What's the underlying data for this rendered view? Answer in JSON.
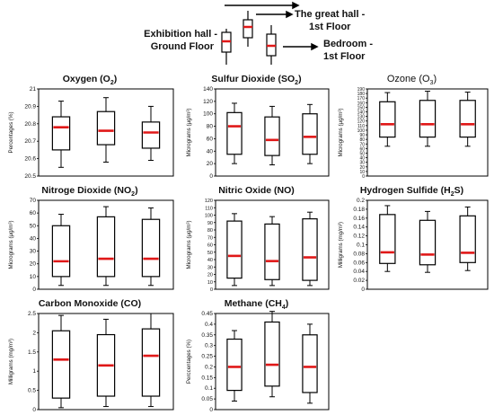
{
  "legend": {
    "labels": {
      "great_hall": "The great hall -\n1st Floor",
      "exhibition": "Exhibition hall -\nGround Floor",
      "bedroom": "Bedroom -\n1st Floor"
    }
  },
  "chart_data": [
    {
      "type": "box",
      "title": "Oxygen (O",
      "title_sub": "2",
      "title_end": ")",
      "ylabel": "Percentages (%)",
      "ylim": [
        20.5,
        21
      ],
      "yticks": [
        20.5,
        20.6,
        20.7,
        20.8,
        20.9,
        21
      ],
      "ytick_labels": [
        "20.5",
        "20.6",
        "20.7",
        "20.8",
        "20.9",
        "21"
      ],
      "boxes": [
        {
          "min": 20.55,
          "q1": 20.65,
          "median": 20.78,
          "q3": 20.84,
          "max": 20.93
        },
        {
          "min": 20.58,
          "q1": 20.68,
          "median": 20.76,
          "q3": 20.87,
          "max": 20.95
        },
        {
          "min": 20.59,
          "q1": 20.66,
          "median": 20.75,
          "q3": 20.81,
          "max": 20.9
        }
      ]
    },
    {
      "type": "box",
      "title": "Sulfur Dioxide (SO",
      "title_sub": "2",
      "title_end": ")",
      "ylabel": "Micrograms (µg/m³)",
      "ylim": [
        0,
        140
      ],
      "yticks": [
        0,
        20,
        40,
        60,
        80,
        100,
        120,
        140
      ],
      "ytick_labels": [
        "0",
        "20",
        "40",
        "60",
        "80",
        "100",
        "120",
        "140"
      ],
      "boxes": [
        {
          "min": 20,
          "q1": 35,
          "median": 80,
          "q3": 102,
          "max": 117
        },
        {
          "min": 18,
          "q1": 33,
          "median": 58,
          "q3": 95,
          "max": 112
        },
        {
          "min": 20,
          "q1": 35,
          "median": 63,
          "q3": 100,
          "max": 115
        }
      ]
    },
    {
      "type": "box",
      "title": "Ozone (O",
      "title_sub": "3",
      "title_end": ")",
      "title_style": "normal",
      "ylabel": "Micrograms (µg/m³)",
      "ylim": [
        0,
        190
      ],
      "yticks": [
        0,
        10,
        20,
        30,
        40,
        50,
        60,
        70,
        80,
        90,
        100,
        110,
        120,
        130,
        140,
        150,
        160,
        170,
        180,
        190
      ],
      "ytick_labels": [
        "0",
        "10",
        "20",
        "30",
        "40",
        "50",
        "60",
        "70",
        "80",
        "90",
        "100",
        "110",
        "120",
        "130",
        "140",
        "150",
        "160",
        "170",
        "180",
        "190"
      ],
      "boxes": [
        {
          "min": 65,
          "q1": 85,
          "median": 113,
          "q3": 162,
          "max": 182
        },
        {
          "min": 65,
          "q1": 85,
          "median": 113,
          "q3": 165,
          "max": 185
        },
        {
          "min": 65,
          "q1": 85,
          "median": 113,
          "q3": 165,
          "max": 183
        }
      ]
    },
    {
      "type": "box",
      "title": "Nitroge Dioxide (NO",
      "title_sub": "2",
      "title_end": ")",
      "ylabel": "Micrograms (µg/m³)",
      "ylim": [
        0,
        70
      ],
      "yticks": [
        0,
        10,
        20,
        30,
        40,
        50,
        60,
        70
      ],
      "ytick_labels": [
        "0",
        "10",
        "20",
        "30",
        "40",
        "50",
        "60",
        "70"
      ],
      "boxes": [
        {
          "min": 3,
          "q1": 10,
          "median": 22,
          "q3": 50,
          "max": 59
        },
        {
          "min": 3,
          "q1": 10,
          "median": 24,
          "q3": 57,
          "max": 65
        },
        {
          "min": 3,
          "q1": 10,
          "median": 24,
          "q3": 55,
          "max": 64
        }
      ]
    },
    {
      "type": "box",
      "title": "Nitric Oxide (NO)",
      "title_sub": "",
      "title_end": "",
      "ylabel": "Micrograms (µg/m³)",
      "ylim": [
        0,
        120
      ],
      "yticks": [
        0,
        10,
        20,
        30,
        40,
        50,
        60,
        70,
        80,
        90,
        100,
        110,
        120
      ],
      "ytick_labels": [
        "0",
        "10",
        "20",
        "30",
        "40",
        "50",
        "60",
        "70",
        "80",
        "90",
        "100",
        "110",
        "120"
      ],
      "boxes": [
        {
          "min": 5,
          "q1": 15,
          "median": 45,
          "q3": 92,
          "max": 102
        },
        {
          "min": 5,
          "q1": 13,
          "median": 38,
          "q3": 88,
          "max": 98
        },
        {
          "min": 5,
          "q1": 12,
          "median": 43,
          "q3": 95,
          "max": 104
        }
      ]
    },
    {
      "type": "box",
      "title": "Hydrogen Sulfide (H",
      "title_sub": "2",
      "title_end": "S)",
      "ylabel": "Milligrams (mg/m³)",
      "ylim": [
        0,
        0.2
      ],
      "yticks": [
        0,
        0.02,
        0.04,
        0.06,
        0.08,
        0.1,
        0.12,
        0.14,
        0.16,
        0.18,
        0.2
      ],
      "ytick_labels": [
        "0",
        "0.02",
        "0.04",
        "0.06",
        "0.08",
        "0.1",
        "0.12",
        "0.14",
        "0.16",
        "0.18",
        "0.2"
      ],
      "boxes": [
        {
          "min": 0.04,
          "q1": 0.058,
          "median": 0.083,
          "q3": 0.168,
          "max": 0.188
        },
        {
          "min": 0.038,
          "q1": 0.055,
          "median": 0.078,
          "q3": 0.155,
          "max": 0.175
        },
        {
          "min": 0.042,
          "q1": 0.06,
          "median": 0.082,
          "q3": 0.165,
          "max": 0.185
        }
      ]
    },
    {
      "type": "box",
      "title": "Carbon Monoxide (CO)",
      "title_sub": "",
      "title_end": "",
      "ylabel": "Milligrams (mg/m³)",
      "ylim": [
        0,
        2.5
      ],
      "yticks": [
        0,
        0.5,
        1,
        1.5,
        2,
        2.5
      ],
      "ytick_labels": [
        "0",
        "0.5",
        "1",
        "1.5",
        "2",
        "2.5"
      ],
      "boxes": [
        {
          "min": 0.05,
          "q1": 0.3,
          "median": 1.3,
          "q3": 2.05,
          "max": 2.45
        },
        {
          "min": 0.08,
          "q1": 0.35,
          "median": 1.15,
          "q3": 1.95,
          "max": 2.35
        },
        {
          "min": 0.08,
          "q1": 0.35,
          "median": 1.4,
          "q3": 2.1,
          "max": 2.5
        }
      ]
    },
    {
      "type": "box",
      "title": "Methane (CH",
      "title_sub": "4",
      "title_end": ")",
      "ylabel": "Perccentages (%)",
      "ylim": [
        0,
        0.45
      ],
      "yticks": [
        0,
        0.05,
        0.1,
        0.15,
        0.2,
        0.25,
        0.3,
        0.35,
        0.4,
        0.45
      ],
      "ytick_labels": [
        "0",
        "0.05",
        "0.1",
        "0.15",
        "0.2",
        "0.25",
        "0.3",
        "0.35",
        "0.4",
        "0.45"
      ],
      "boxes": [
        {
          "min": 0.04,
          "q1": 0.09,
          "median": 0.2,
          "q3": 0.33,
          "max": 0.37
        },
        {
          "min": 0.06,
          "q1": 0.11,
          "median": 0.21,
          "q3": 0.41,
          "max": 0.46
        },
        {
          "min": 0.03,
          "q1": 0.08,
          "median": 0.2,
          "q3": 0.35,
          "max": 0.4
        }
      ]
    }
  ],
  "colors": {
    "median": "#e01818",
    "box": "#000000"
  }
}
